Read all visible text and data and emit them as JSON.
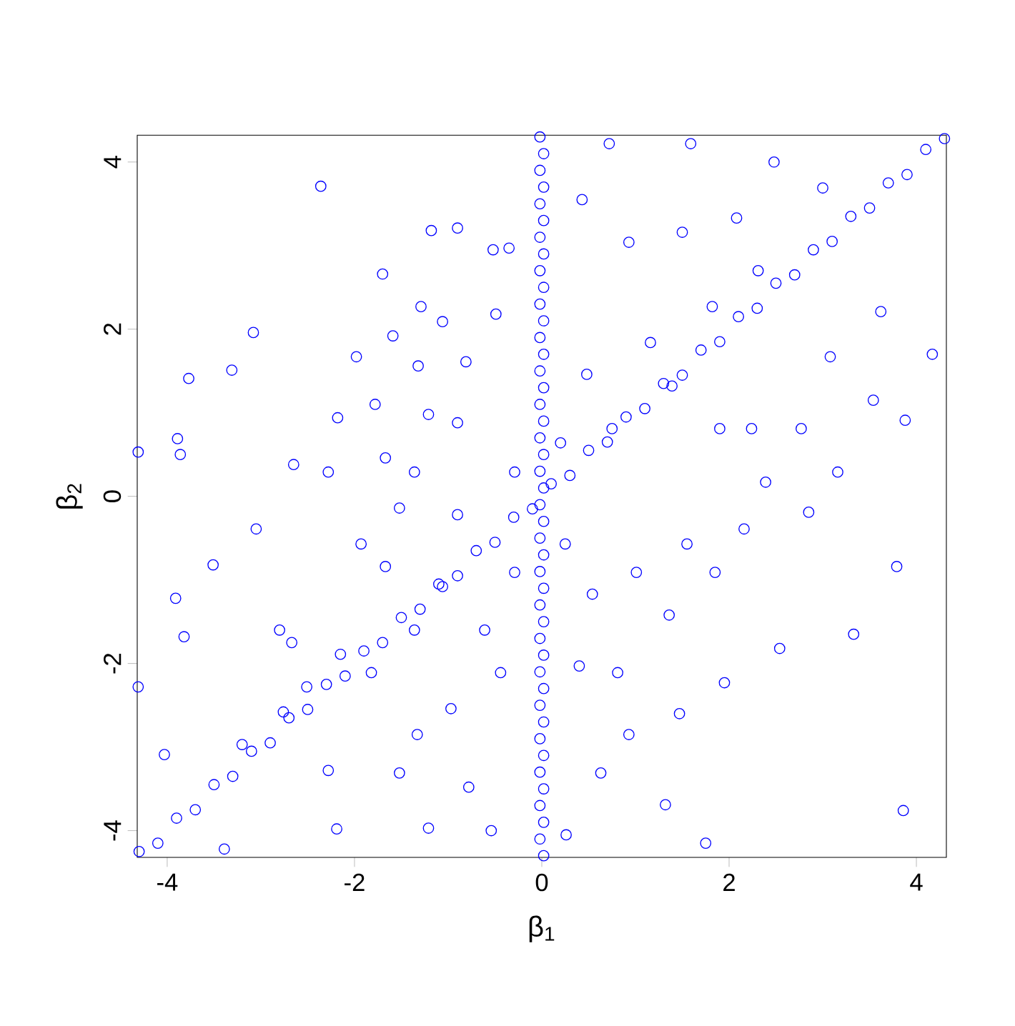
{
  "chart_data": {
    "type": "scatter",
    "xlabel": "β$_{1}$",
    "ylabel": "β$_{2}$",
    "color": "#0000ff",
    "marker": "circle",
    "xlim": [
      -4.32,
      4.32
    ],
    "ylim": [
      -4.32,
      4.32
    ],
    "xticks": [
      -4,
      -2,
      0,
      2,
      4
    ],
    "yticks": [
      -4,
      -2,
      0,
      2,
      4
    ],
    "x": [
      -4.3,
      -4.1,
      -3.9,
      -3.7,
      -3.5,
      -3.3,
      -3.1,
      -2.9,
      -2.7,
      -2.5,
      -2.3,
      -2.1,
      -1.9,
      -1.7,
      -1.5,
      -1.3,
      -1.1,
      -0.9,
      -0.7,
      -0.5,
      -0.3,
      -0.1,
      0.1,
      0.3,
      0.5,
      0.7,
      0.9,
      1.1,
      1.3,
      1.5,
      1.7,
      1.9,
      2.1,
      2.3,
      2.5,
      2.7,
      2.9,
      3.1,
      3.3,
      3.5,
      3.7,
      3.9,
      4.1,
      4.3,
      0.02,
      -0.02,
      0.02,
      -0.02,
      0.02,
      -0.02,
      0.02,
      -0.02,
      0.02,
      -0.02,
      0.02,
      -0.02,
      0.02,
      -0.02,
      0.02,
      -0.02,
      0.02,
      -0.02,
      0.02,
      -0.02,
      0.02,
      -0.02,
      0.02,
      -0.02,
      0.02,
      -0.02,
      0.02,
      -0.02,
      0.02,
      -0.02,
      0.02,
      -0.02,
      0.02,
      -0.02,
      0.02,
      -0.02,
      0.02,
      -0.02,
      0.02,
      -0.02,
      0.02,
      -0.02,
      0.02,
      -0.02,
      -4.31,
      -3.77,
      -3.31,
      -3.08,
      -3.89,
      -3.86,
      -2.36,
      -1.7,
      -1.18,
      -0.9,
      0.72,
      1.59,
      2.48,
      3.0,
      3.62,
      4.17,
      3.88,
      3.86,
      3.79,
      3.33,
      2.54,
      1.95,
      1.75,
      1.32,
      0.93,
      0.26,
      -1.52,
      -2.19,
      -3.39,
      -4.31,
      -4.03,
      -3.82,
      -3.91,
      -3.2,
      -2.76,
      -2.67,
      -2.15,
      -1.93,
      -2.65,
      -2.18,
      -1.78,
      -1.32,
      -0.81,
      -1.06,
      -0.49,
      -0.35,
      -0.9,
      -1.36,
      -1.67,
      -1.06,
      -0.61,
      -0.44,
      -0.97,
      -1.33,
      -0.78,
      -0.54,
      -1.21,
      -2.28,
      0.43,
      0.93,
      1.5,
      2.08,
      2.31,
      1.82,
      1.16,
      0.48,
      0.75,
      1.39,
      1.9,
      2.39,
      2.85,
      3.16,
      2.16,
      1.55,
      1.01,
      0.54,
      1.36,
      1.85,
      0.81,
      0.4,
      1.47,
      0.63,
      2.24,
      2.77,
      3.54,
      3.08,
      0.2,
      0.25,
      -0.29,
      -0.29,
      -3.05,
      -3.51,
      -2.8,
      -2.51,
      -1.82,
      -1.36,
      -1.52,
      -0.9,
      -2.28,
      -1.67,
      -1.21,
      -1.98,
      -1.29,
      -0.52,
      -1.59
    ],
    "values": [
      -4.25,
      -4.15,
      -3.85,
      -3.75,
      -3.45,
      -3.35,
      -3.05,
      -2.95,
      -2.65,
      -2.55,
      -2.25,
      -2.15,
      -1.85,
      -1.75,
      -1.45,
      -1.35,
      -1.05,
      -0.95,
      -0.65,
      -0.55,
      -0.25,
      -0.15,
      0.15,
      0.25,
      0.55,
      0.65,
      0.95,
      1.05,
      1.35,
      1.45,
      1.75,
      1.85,
      2.15,
      2.25,
      2.55,
      2.65,
      2.95,
      3.05,
      3.35,
      3.45,
      3.75,
      3.85,
      4.15,
      4.28,
      -4.3,
      -4.1,
      -3.9,
      -3.7,
      -3.5,
      -3.3,
      -3.1,
      -2.9,
      -2.7,
      -2.5,
      -2.3,
      -2.1,
      -1.9,
      -1.7,
      -1.5,
      -1.3,
      -1.1,
      -0.9,
      -0.7,
      -0.5,
      -0.3,
      -0.1,
      0.1,
      0.3,
      0.5,
      0.7,
      0.9,
      1.1,
      1.3,
      1.5,
      1.7,
      1.9,
      2.1,
      2.3,
      2.5,
      2.7,
      2.9,
      3.1,
      3.3,
      3.5,
      3.7,
      3.9,
      4.1,
      4.3,
      0.53,
      1.41,
      1.51,
      1.96,
      0.69,
      0.5,
      3.71,
      2.66,
      3.18,
      3.21,
      4.22,
      4.22,
      4.0,
      3.69,
      2.21,
      1.7,
      0.91,
      -3.76,
      -0.84,
      -1.65,
      -1.82,
      -2.23,
      -4.15,
      -3.69,
      -2.85,
      -4.05,
      -3.31,
      -3.98,
      -4.22,
      -2.28,
      -3.09,
      -1.68,
      -1.22,
      -2.97,
      -2.58,
      -1.75,
      -1.89,
      -0.57,
      0.38,
      0.94,
      1.1,
      1.56,
      1.61,
      2.09,
      2.18,
      2.97,
      0.88,
      0.29,
      -0.84,
      -1.08,
      -1.6,
      -2.11,
      -2.54,
      -2.85,
      -3.48,
      -4.0,
      -3.97,
      -3.28,
      3.55,
      3.04,
      3.16,
      3.33,
      2.7,
      2.27,
      1.84,
      1.46,
      0.81,
      1.32,
      0.81,
      0.17,
      -0.19,
      0.29,
      -0.39,
      -0.57,
      -0.91,
      -1.17,
      -1.42,
      -0.91,
      -2.11,
      -2.03,
      -2.6,
      -3.31,
      0.81,
      0.81,
      1.15,
      1.67,
      0.64,
      -0.57,
      0.29,
      -0.91,
      -0.39,
      -0.82,
      -1.6,
      -2.28,
      -2.11,
      -1.6,
      -0.14,
      -0.22,
      0.29,
      0.46,
      0.98,
      1.67,
      2.27,
      2.95,
      1.92
    ]
  }
}
